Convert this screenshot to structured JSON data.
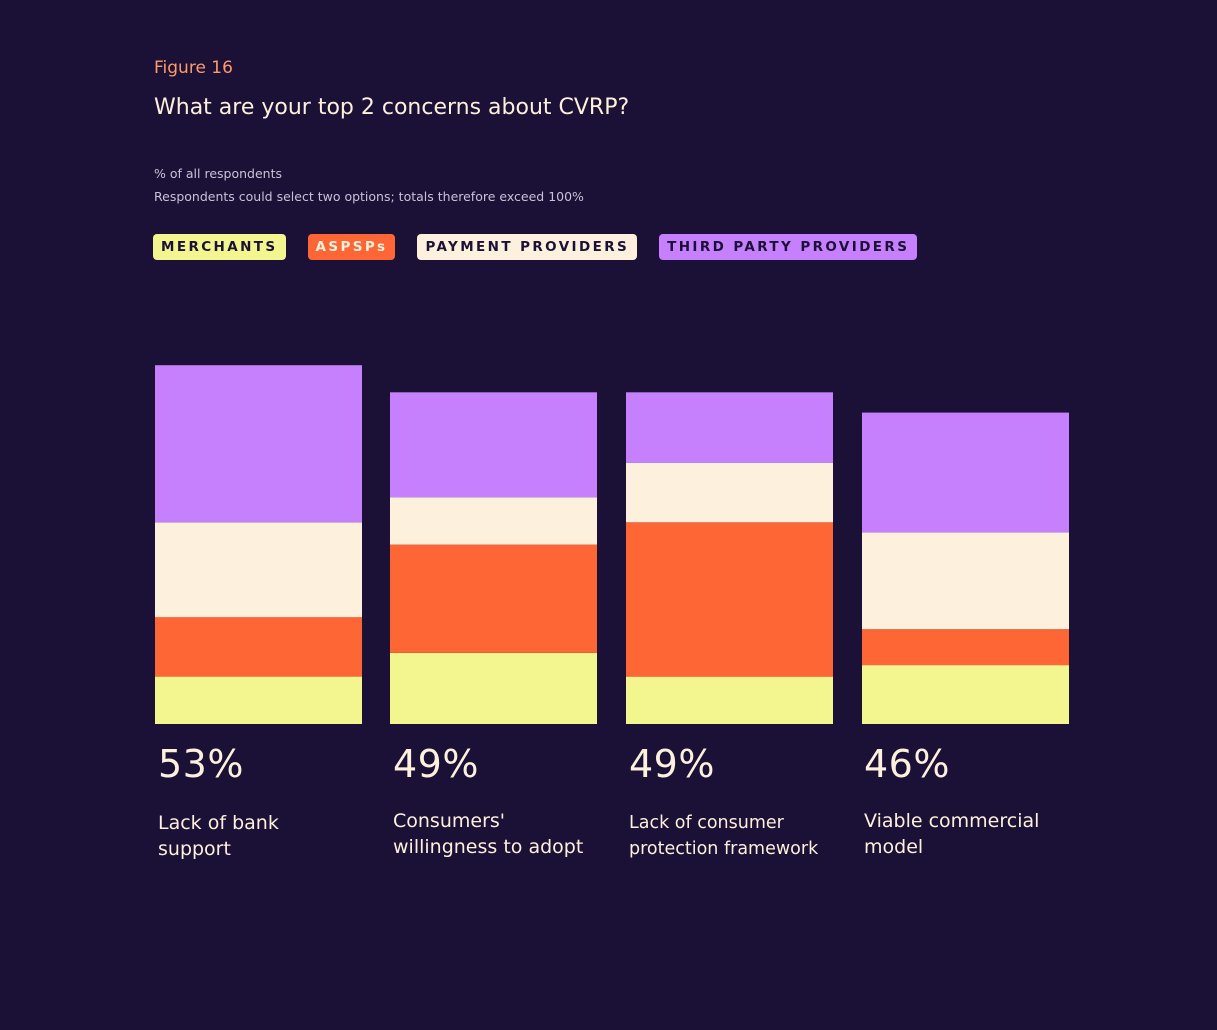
{
  "figure_label": "Figure 16",
  "title": "What are your top 2 concerns about CVRP?",
  "notes": [
    "% of all respondents",
    "Respondents could select two options; totals therefore exceed 100%"
  ],
  "colors": {
    "background": "#1b1035",
    "merchants": "#f3f58f",
    "aspsps": "#ff6636",
    "payment_providers": "#fdf0dc",
    "third_party_providers": "#c67ffd"
  },
  "chart_data": {
    "type": "bar",
    "stacked": true,
    "legend_placement": "top-left",
    "grid": false,
    "categories": [
      "Lack of bank support",
      "Consumers' willingness to adopt",
      "Lack of consumer protection framework",
      "Viable commercial model"
    ],
    "category_lines": [
      [
        "Lack of bank",
        "support"
      ],
      [
        "Consumers'",
        "willingness to adopt"
      ],
      [
        "Lack of consumer",
        "protection framework"
      ],
      [
        "Viable commercial",
        "model"
      ]
    ],
    "totals_labels": [
      "53%",
      "49%",
      "49%",
      "46%"
    ],
    "totals": [
      53,
      49,
      49,
      46
    ],
    "series": [
      {
        "name": "MERCHANTS",
        "color": "#f3f58f",
        "values": [
          7,
          10.5,
          7,
          8.7
        ]
      },
      {
        "name": "ASPSPs",
        "color": "#ff6636",
        "values": [
          8.8,
          16,
          22.8,
          5.3
        ]
      },
      {
        "name": "PAYMENT PROVIDERS",
        "color": "#fdf0dc",
        "values": [
          14,
          7,
          8.8,
          14.3
        ]
      },
      {
        "name": "THIRD PARTY PROVIDERS",
        "color": "#c67ffd",
        "values": [
          23.2,
          15.5,
          10.4,
          17.7
        ]
      }
    ]
  }
}
